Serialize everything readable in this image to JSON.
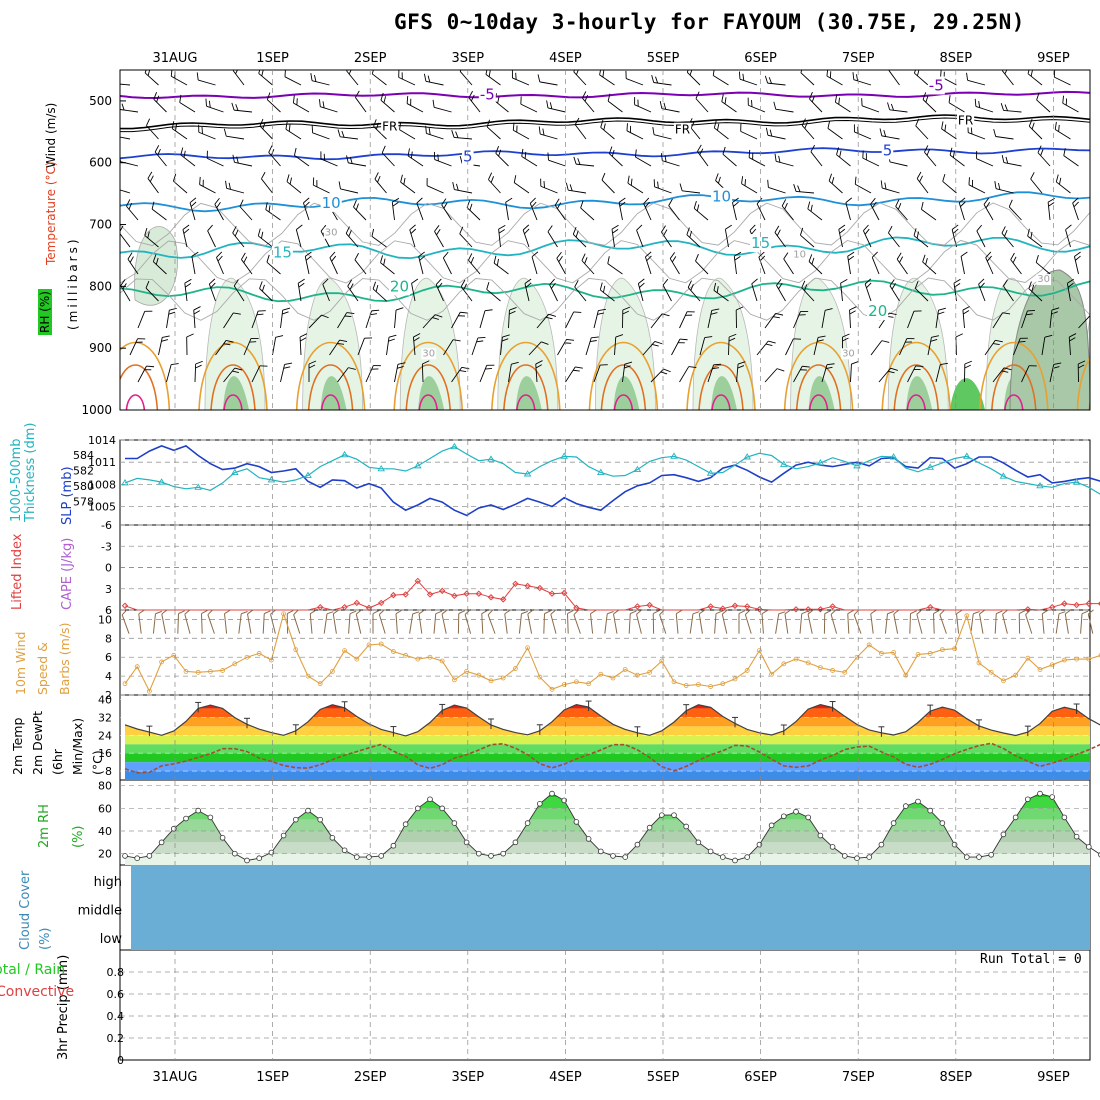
{
  "title": "GFS 0~10day 3-hourly for FAYOUM (30.75E, 29.25N)",
  "x_axis": {
    "dates": [
      "31AUG",
      "1SEP",
      "2SEP",
      "3SEP",
      "4SEP",
      "5SEP",
      "6SEP",
      "7SEP",
      "8SEP",
      "9SEP"
    ]
  },
  "colors": {
    "temp_cold": "#7b00b4",
    "temp_freezing": "#000000",
    "temp_5": "#1e40d0",
    "temp_10": "#1e90d8",
    "temp_15": "#22b4c0",
    "temp_20": "#1db48c",
    "slp": "#1e40c8",
    "thickness": "#22b4c0",
    "lifted_index": "#e04040",
    "wind_speed": "#e0a040",
    "cloud_fill": "#6aaed6",
    "rh_green": "#22c822",
    "dewpt": "#a05030"
  },
  "chart_data": [
    {
      "type": "contour",
      "panel": "upper-air",
      "ylabel_wind": "Wind (m/s)",
      "ylabel_temp": "Temperature (°C)",
      "ylabel_rh": "RH (%)",
      "ylabel_pressure": "(millibars)",
      "y_ticks": [
        "500",
        "600",
        "700",
        "800",
        "900",
        "1000"
      ],
      "y_range_mb": [
        1000,
        450
      ],
      "contour_labels": [
        {
          "text": "-5",
          "x": 3.2,
          "mb": 490,
          "series": "temp_cold"
        },
        {
          "text": "-5",
          "x": 7.8,
          "mb": 475,
          "series": "temp_cold"
        },
        {
          "text": "FR",
          "x": 2.2,
          "mb": 540,
          "series": "temp_freezing"
        },
        {
          "text": "FR",
          "x": 5.2,
          "mb": 545,
          "series": "temp_freezing"
        },
        {
          "text": "FR",
          "x": 8.1,
          "mb": 530,
          "series": "temp_freezing"
        },
        {
          "text": "5",
          "x": 3.0,
          "mb": 590,
          "series": "temp_5"
        },
        {
          "text": "5",
          "x": 7.3,
          "mb": 580,
          "series": "temp_5"
        },
        {
          "text": "10",
          "x": 1.6,
          "mb": 665,
          "series": "temp_10"
        },
        {
          "text": "10",
          "x": 5.6,
          "mb": 655,
          "series": "temp_10"
        },
        {
          "text": "15",
          "x": 1.1,
          "mb": 745,
          "series": "temp_15"
        },
        {
          "text": "15",
          "x": 6.0,
          "mb": 730,
          "series": "temp_15"
        },
        {
          "text": "20",
          "x": 2.3,
          "mb": 800,
          "series": "temp_20"
        },
        {
          "text": "20",
          "x": 7.2,
          "mb": 840,
          "series": "temp_20"
        },
        {
          "text": "30",
          "x": 1.6,
          "mb": 710,
          "series": "rh"
        },
        {
          "text": "30",
          "x": 8.9,
          "mb": 785,
          "series": "rh"
        },
        {
          "text": "10",
          "x": 6.4,
          "mb": 745,
          "series": "rh"
        },
        {
          "text": "30",
          "x": 2.6,
          "mb": 905,
          "series": "rh"
        },
        {
          "text": "30",
          "x": 6.9,
          "mb": 905,
          "series": "rh"
        }
      ]
    },
    {
      "type": "line",
      "panel": "slp-thickness",
      "ylabel_left": "1000-500mb Thickness (dm)",
      "ylabel_right": "SLP (mb)",
      "thickness_ticks": [
        "584",
        "582",
        "580",
        "578"
      ],
      "slp_ticks": [
        "1014",
        "1011",
        "1008",
        "1005"
      ],
      "slp_range": [
        1002.5,
        1014
      ],
      "series": [
        {
          "key": "slp",
          "values": [
            1011.5,
            1011.5,
            1012.5,
            1013.2,
            1012.6,
            1013.2,
            1011.9,
            1010.8,
            1010,
            1010.2,
            1010.8,
            1010.4,
            1009.6,
            1009.8,
            1010.1,
            1008.4,
            1007.6,
            1008.6,
            1008.5,
            1007.5,
            1008.1,
            1007.5,
            1005.6,
            1004.5,
            1005.2,
            1006.1,
            1005.6,
            1004.5,
            1003.8,
            1004.8,
            1005.2,
            1004.6,
            1005.3,
            1006.1,
            1005.6,
            1005,
            1006.2,
            1005.4,
            1004.9,
            1004.5,
            1005.8,
            1007,
            1007.8,
            1008.2,
            1009.2,
            1009.3,
            1008.9,
            1008.4,
            1008.9,
            1010.2,
            1010.6,
            1009.9,
            1009,
            1008.3,
            1009.5,
            1010.6,
            1011,
            1010.6,
            1010.4,
            1010.7,
            1011,
            1010.5,
            1011.5,
            1011.6,
            1010.4,
            1010.2,
            1011.6,
            1011.5,
            1010.2,
            1010.8,
            1011.7,
            1011.7,
            1010.9,
            1009.9,
            1009,
            1009.3,
            1008.2,
            1008.4,
            1008.7,
            1008.9,
            1008.4,
            1008.9,
            1009.2,
            1009.6,
            1011
          ]
        },
        {
          "key": "thickness",
          "values": [
            1008.2,
            1008.8,
            1008.6,
            1008.3,
            1007.7,
            1007.4,
            1007.6,
            1007.2,
            1008.2,
            1009.6,
            1010.1,
            1008.9,
            1008.6,
            1008.3,
            1008.6,
            1009.2,
            1010.4,
            1011.2,
            1012,
            1011.4,
            1010.3,
            1010.1,
            1010.1,
            1009.8,
            1010.5,
            1011.5,
            1012.5,
            1013.1,
            1012.1,
            1011.2,
            1011.4,
            1010.8,
            1009.6,
            1009.4,
            1010.4,
            1011.2,
            1011.8,
            1011.7,
            1010.4,
            1009.6,
            1009.1,
            1009.2,
            1010,
            1011.1,
            1011.6,
            1011.8,
            1011.3,
            1010.4,
            1009.5,
            1009.6,
            1010.6,
            1011.7,
            1012.2,
            1011.9,
            1010.7,
            1010.1,
            1010.4,
            1010.9,
            1011.6,
            1011.1,
            1010.5,
            1011.2,
            1011.8,
            1011.7,
            1010.2,
            1009.7,
            1010.3,
            1010.9,
            1011.5,
            1011.8,
            1010.9,
            1010.1,
            1009.1,
            1008.4,
            1008.1,
            1007.8,
            1007.6,
            1008.1,
            1008.3,
            1007.6,
            1006.6,
            1006,
            1004.4,
            1003.3,
            1003
          ]
        }
      ]
    },
    {
      "type": "line",
      "panel": "stability",
      "ylabel_left": "Lifted Index",
      "ylabel_right": "CAPE (J/kg)",
      "y_ticks": [
        "-6",
        "-3",
        "0",
        "3",
        "6"
      ],
      "ylim": [
        -6,
        6
      ],
      "values": [
        5.4,
        6,
        6,
        6,
        6,
        6,
        6,
        6,
        6,
        6,
        6,
        6,
        6,
        6,
        6,
        6,
        5.6,
        6,
        5.6,
        5,
        5.7,
        5,
        3.9,
        3.8,
        1.9,
        3.8,
        3.3,
        4,
        3.7,
        3.7,
        4.2,
        4.5,
        2.3,
        2.6,
        2.9,
        3.7,
        3.6,
        5.7,
        6,
        6,
        6,
        6,
        5.5,
        5.3,
        6,
        6,
        6,
        6,
        5.5,
        5.8,
        5.4,
        5.5,
        5.9,
        6,
        6,
        5.9,
        5.9,
        5.9,
        5.5,
        6,
        6,
        6,
        6,
        6,
        6,
        6,
        5.6,
        6,
        6,
        6,
        6,
        6,
        6,
        6,
        5.9,
        6,
        5.6,
        5.1,
        5.3,
        5.1,
        5.1,
        5.6,
        6,
        6,
        6
      ]
    },
    {
      "type": "line",
      "panel": "wind10m",
      "ylabel": "10m Wind Speed & Barbs (m/s)",
      "y_ticks": [
        "10",
        "8",
        "6",
        "4",
        "2"
      ],
      "ylim": [
        2,
        11
      ],
      "values": [
        3.2,
        5,
        2.4,
        5.5,
        6.2,
        4.5,
        4.4,
        4.5,
        4.6,
        5.3,
        6,
        6.4,
        5.7,
        10.6,
        6.8,
        4,
        3.2,
        4.5,
        6.7,
        5.8,
        7.3,
        7.4,
        6.6,
        6.2,
        5.8,
        6,
        5.6,
        3.6,
        4.5,
        4.1,
        3.5,
        3.8,
        4.8,
        7,
        3.9,
        2.6,
        3.1,
        3.4,
        3.2,
        4.2,
        3.8,
        4.7,
        4.1,
        4.4,
        5.6,
        3.4,
        3,
        3.1,
        2.9,
        3.2,
        3.7,
        4.6,
        6.7,
        4.2,
        5.3,
        5.8,
        5.4,
        4.9,
        4.6,
        4.4,
        6,
        7.3,
        6.4,
        6.5,
        4.1,
        6.3,
        6.4,
        6.8,
        6.9,
        10.4,
        5.4,
        4.4,
        3.5,
        4.1,
        5.9,
        4.7,
        5.2,
        5.7,
        5.8,
        5.8,
        6.2,
        3.1,
        2.7,
        3.1,
        3.6
      ]
    },
    {
      "type": "area",
      "panel": "temperature",
      "ylabel": "2m Temp 2m DewPt (6hr Min/Max) (°C)",
      "y_ticks": [
        "40",
        "32",
        "24",
        "16",
        "8"
      ],
      "ylim": [
        4,
        42
      ],
      "temp": [
        28.7,
        26.8,
        25.4,
        24,
        25.9,
        30.2,
        36,
        37.5,
        36,
        31.9,
        28.9,
        26.7,
        25.2,
        24,
        26,
        30,
        35.5,
        37.6,
        36.3,
        32.4,
        29.1,
        26.6,
        25.2,
        23.7,
        25.6,
        29.7,
        35.1,
        37.5,
        36.2,
        32.2,
        28.6,
        26.6,
        25.2,
        24.2,
        26,
        30,
        35.3,
        37.7,
        36.6,
        32.6,
        28.9,
        26.6,
        25.1,
        24,
        26,
        29.9,
        35,
        37.6,
        36.5,
        32.4,
        29.3,
        26.6,
        25.1,
        24.1,
        25.9,
        30.1,
        35.7,
        37.7,
        36.4,
        32.5,
        28.8,
        26.4,
        25.1,
        24.1,
        25.6,
        29.7,
        34.8,
        36.6,
        35.2,
        31.4,
        28.2,
        26.3,
        25,
        23.9,
        25.4,
        29.2,
        34.7,
        36.5,
        35.3,
        31.4,
        28.4,
        26.6,
        25.5,
        24.3,
        25.1
      ],
      "dewpt": [
        9,
        7.2,
        7.5,
        10.3,
        11.2,
        12.5,
        14.1,
        15.7,
        18,
        18,
        16.7,
        13.8,
        12.3,
        10.5,
        9.5,
        9.3,
        10.8,
        13.1,
        15.1,
        16.7,
        18.4,
        19.9,
        16.9,
        14.6,
        10.8,
        9.2,
        10.9,
        13.8,
        15.3,
        17.4,
        19.8,
        20.2,
        18.2,
        15.4,
        11.3,
        9.4,
        11.1,
        13.4,
        15.4,
        17.4,
        19.8,
        19.8,
        17.5,
        14.1,
        9.9,
        8.1,
        10.1,
        12.7,
        15.2,
        17.1,
        19.5,
        19.2,
        16.5,
        13.3,
        10.3,
        9.7,
        10.3,
        12.9,
        15,
        17.6,
        18.8,
        19.1,
        16.6,
        14.3,
        11,
        9.7,
        11,
        13.2,
        15.7,
        17.7,
        19.4,
        20.4,
        18.1,
        14.8,
        12.4,
        10.1,
        11.6,
        13.2,
        15.5,
        17.5,
        20,
        18.8,
        17.8,
        16.4,
        16.6
      ]
    },
    {
      "type": "area",
      "panel": "rh2m",
      "ylabel": "2m RH (%)",
      "y_ticks": [
        "80",
        "60",
        "40",
        "20"
      ],
      "ylim": [
        10,
        85
      ],
      "values": [
        18,
        16,
        18,
        30,
        42,
        51,
        58,
        52,
        34,
        20,
        14,
        16,
        21,
        36,
        50,
        58,
        50,
        34,
        23,
        17,
        17,
        18,
        27,
        46,
        60,
        68,
        60,
        47,
        30,
        20,
        18,
        20,
        30,
        47,
        64,
        73,
        67,
        48,
        33,
        22,
        18,
        17,
        28,
        43,
        54,
        54,
        44,
        30,
        22,
        17,
        14,
        17,
        28,
        45,
        53,
        57,
        52,
        36,
        26,
        18,
        16,
        17,
        28,
        47,
        62,
        66,
        58,
        47,
        28,
        17,
        17,
        19,
        37,
        52,
        68,
        73,
        70,
        52,
        35,
        26,
        19,
        18,
        22,
        38,
        55
      ]
    },
    {
      "type": "table",
      "panel": "cloud",
      "ylabel": "Cloud Cover (%)",
      "levels": [
        "high",
        "middle",
        "low"
      ]
    },
    {
      "type": "bar",
      "panel": "precip",
      "ylabel": "3hr Precip (mm)",
      "legend": [
        "Total / Rain",
        "Convective"
      ],
      "y_ticks": [
        "0.8",
        "0.6",
        "0.4",
        "0.2",
        "0"
      ],
      "ylim": [
        0,
        1
      ],
      "run_total": "Run Total = 0"
    }
  ]
}
